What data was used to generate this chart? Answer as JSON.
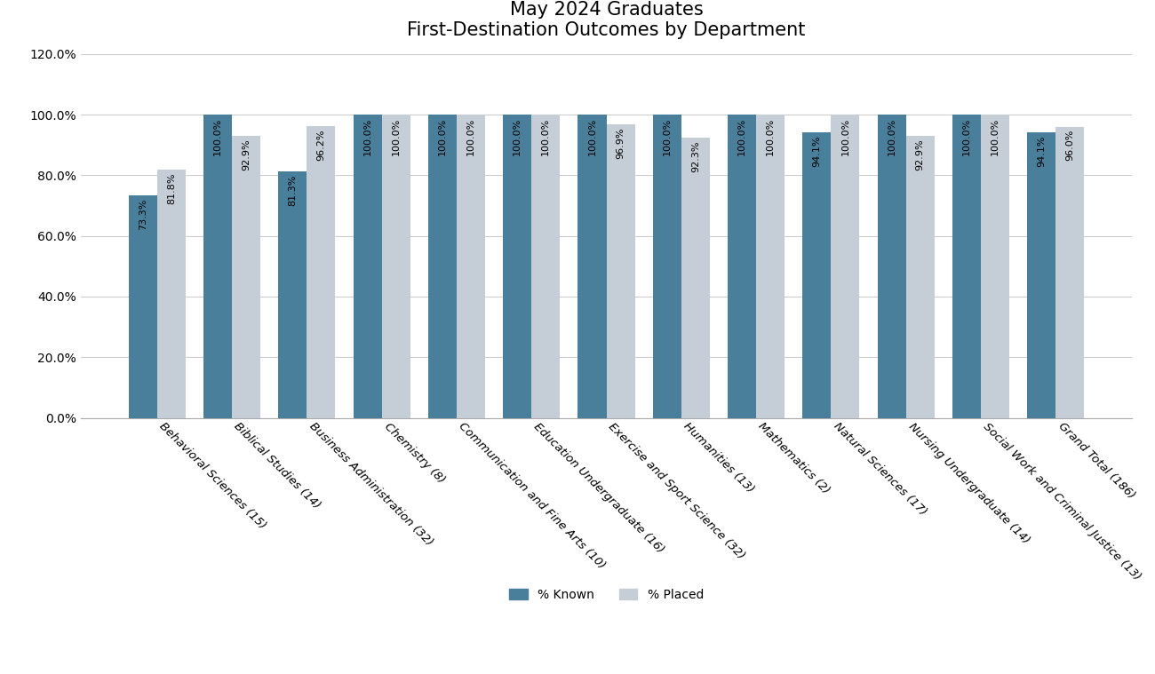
{
  "title": "May 2024 Graduates\nFirst-Destination Outcomes by Department",
  "categories": [
    "Behavioral Sciences (15)",
    "Biblical Studies (14)",
    "Business Administration (32)",
    "Chemistry (8)",
    "Communication and Fine Arts (10)",
    "Education Undergraduate (16)",
    "Exercise and Sport Science (32)",
    "Humanities (13)",
    "Mathematics (2)",
    "Natural Sciences (17)",
    "Nursing Undergraduate (14)",
    "Social Work and Criminal Justice (13)",
    "Grand Total (186)"
  ],
  "known": [
    73.3,
    100.0,
    81.3,
    100.0,
    100.0,
    100.0,
    100.0,
    100.0,
    100.0,
    94.1,
    100.0,
    100.0,
    94.1
  ],
  "placed": [
    81.8,
    92.9,
    96.2,
    100.0,
    100.0,
    100.0,
    96.9,
    92.3,
    100.0,
    100.0,
    92.9,
    100.0,
    96.0
  ],
  "known_labels": [
    "73.3%",
    "100.0%",
    "81.3%",
    "100.0%",
    "100.0%",
    "100.0%",
    "100.0%",
    "100.0%",
    "100.0%",
    "94.1%",
    "100.0%",
    "100.0%",
    "94.1%"
  ],
  "placed_labels": [
    "81.8%",
    "92.9%",
    "96.2%",
    "100.0%",
    "100.0%",
    "100.0%",
    "96.9%",
    "92.3%",
    "100.0%",
    "100.0%",
    "92.9%",
    "100.0%",
    "96.0%"
  ],
  "color_known": "#4a7f9b",
  "color_placed": "#c5cdd6",
  "ylim": [
    0,
    120
  ],
  "yticks": [
    0,
    20,
    40,
    60,
    80,
    100,
    120
  ],
  "ytick_labels": [
    "0.0%",
    "20.0%",
    "40.0%",
    "60.0%",
    "80.0%",
    "100.0%",
    "120.0%"
  ],
  "background_color": "#ffffff",
  "title_fontsize": 15,
  "bar_width": 0.38,
  "legend_labels": [
    "% Known",
    "% Placed"
  ]
}
